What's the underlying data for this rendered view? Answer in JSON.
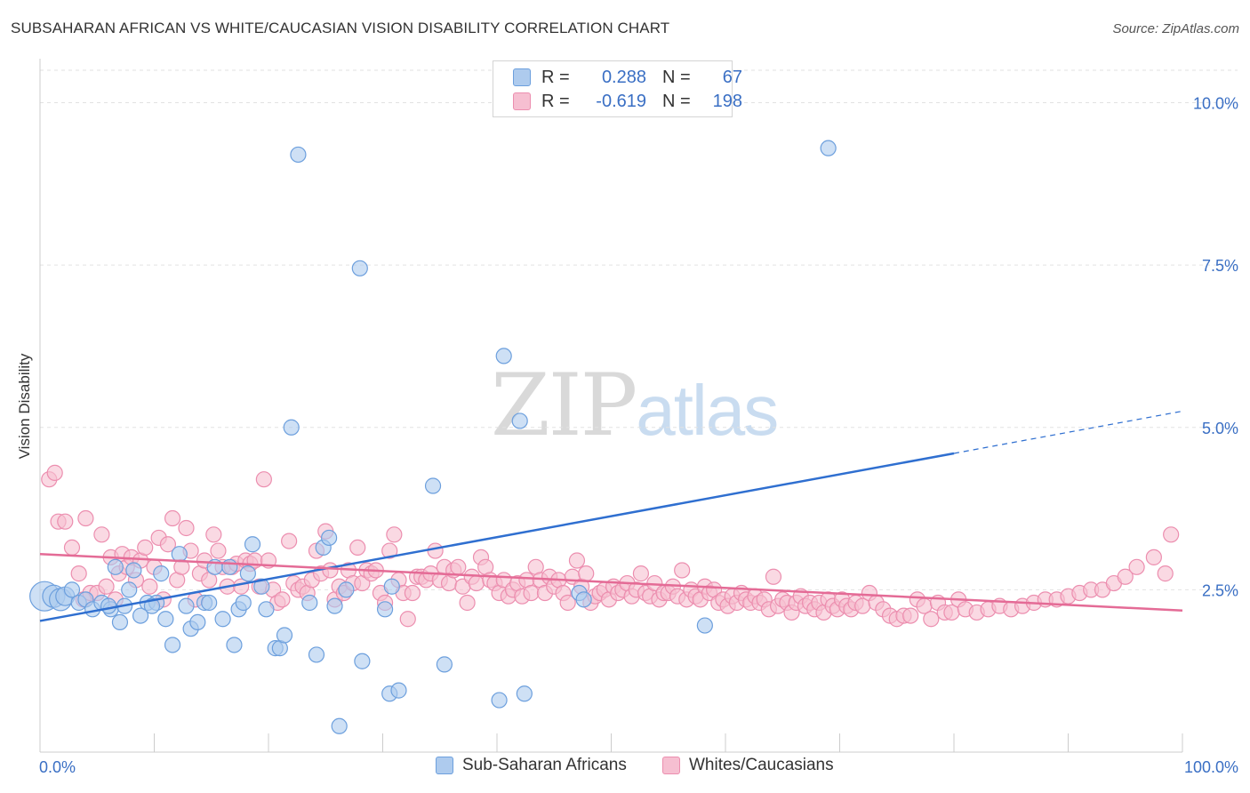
{
  "title": "SUBSAHARAN AFRICAN VS WHITE/CAUCASIAN VISION DISABILITY CORRELATION CHART",
  "source": "Source: ZipAtlas.com",
  "watermark": {
    "zip": "ZIP",
    "atlas": "atlas"
  },
  "colors": {
    "blue_fill": "#aecbee",
    "blue_stroke": "#6c9fdd",
    "blue_line": "#2f6fd0",
    "pink_fill": "#f6bfd1",
    "pink_stroke": "#ec8eaf",
    "pink_line": "#e46b96",
    "axis_text": "#3a6fc4",
    "grid": "#e2e2e2"
  },
  "legend": {
    "rows": [
      {
        "r_label": "R =",
        "r_value": "0.288",
        "n_label": "N =",
        "n_value": "67",
        "series": "blue"
      },
      {
        "r_label": "R =",
        "r_value": "-0.619",
        "n_label": "N =",
        "n_value": "198",
        "series": "pink"
      }
    ]
  },
  "bottom_legend": [
    {
      "label": "Sub-Saharan Africans",
      "series": "blue"
    },
    {
      "label": "Whites/Caucasians",
      "series": "pink"
    }
  ],
  "chart_data": {
    "type": "scatter",
    "title": "SUBSAHARAN AFRICAN VS WHITE/CAUCASIAN VISION DISABILITY CORRELATION CHART",
    "xlabel": "",
    "ylabel": "Vision Disability",
    "xlim": [
      0,
      100
    ],
    "ylim": [
      0,
      10.5
    ],
    "x_tick_labels": [
      "0.0%",
      "100.0%"
    ],
    "y_ticks": [
      2.5,
      5.0,
      7.5,
      10.0
    ],
    "y_tick_labels": [
      "2.5%",
      "5.0%",
      "7.5%",
      "10.0%"
    ],
    "grid": true,
    "legend_position": "top-center",
    "series": [
      {
        "name": "Sub-Saharan Africans",
        "color": "blue",
        "r": 0.288,
        "n": 67,
        "trend": {
          "x": [
            0,
            80
          ],
          "y": [
            2.02,
            4.6
          ],
          "dash_to_x": 100,
          "dash_to_y": 5.25
        },
        "points": [
          [
            0.4,
            2.4,
            3
          ],
          [
            1.2,
            2.4,
            2
          ],
          [
            1.8,
            2.35,
            2
          ],
          [
            2.2,
            2.4,
            1.5
          ],
          [
            2.8,
            2.5,
            1
          ],
          [
            3.4,
            2.3,
            1
          ],
          [
            4.0,
            2.35,
            1
          ],
          [
            4.6,
            2.2,
            1
          ],
          [
            5.4,
            2.3,
            1
          ],
          [
            6.2,
            2.2,
            1
          ],
          [
            6.6,
            2.85,
            1
          ],
          [
            7.0,
            2.0,
            1
          ],
          [
            7.4,
            2.25,
            1
          ],
          [
            7.8,
            2.5,
            1
          ],
          [
            8.2,
            2.8,
            1
          ],
          [
            8.8,
            2.1,
            1
          ],
          [
            9.4,
            2.3,
            1
          ],
          [
            10.2,
            2.3,
            1
          ],
          [
            10.6,
            2.75,
            1
          ],
          [
            11.0,
            2.05,
            1
          ],
          [
            11.6,
            1.65,
            1
          ],
          [
            12.2,
            3.05,
            1
          ],
          [
            12.8,
            2.25,
            1
          ],
          [
            13.2,
            1.9,
            1
          ],
          [
            13.8,
            2.0,
            1
          ],
          [
            14.4,
            2.3,
            1
          ],
          [
            14.8,
            2.3,
            1
          ],
          [
            15.3,
            2.85,
            1
          ],
          [
            16.0,
            2.05,
            1
          ],
          [
            16.6,
            2.85,
            1
          ],
          [
            17.0,
            1.65,
            1
          ],
          [
            17.4,
            2.2,
            1
          ],
          [
            17.8,
            2.3,
            1
          ],
          [
            18.2,
            2.75,
            1
          ],
          [
            18.6,
            3.2,
            1
          ],
          [
            19.4,
            2.55,
            1
          ],
          [
            19.8,
            2.2,
            1
          ],
          [
            20.6,
            1.6,
            1
          ],
          [
            21.0,
            1.6,
            1
          ],
          [
            21.4,
            1.8,
            1
          ],
          [
            22.0,
            5.0,
            1
          ],
          [
            22.6,
            9.2,
            1
          ],
          [
            23.6,
            2.3,
            1
          ],
          [
            24.2,
            1.5,
            1
          ],
          [
            24.8,
            3.15,
            1
          ],
          [
            25.3,
            3.3,
            1
          ],
          [
            25.8,
            2.25,
            1
          ],
          [
            26.2,
            0.4,
            1
          ],
          [
            26.8,
            2.5,
            1
          ],
          [
            28.0,
            7.45,
            1
          ],
          [
            28.2,
            1.4,
            1
          ],
          [
            30.2,
            2.2,
            1
          ],
          [
            30.6,
            0.9,
            1
          ],
          [
            30.8,
            2.55,
            1
          ],
          [
            31.4,
            0.95,
            1
          ],
          [
            34.4,
            4.1,
            1
          ],
          [
            35.4,
            1.35,
            1
          ],
          [
            40.2,
            0.8,
            1
          ],
          [
            40.6,
            6.1,
            1
          ],
          [
            42.0,
            5.1,
            1
          ],
          [
            42.4,
            0.9,
            1
          ],
          [
            47.2,
            2.45,
            1
          ],
          [
            47.6,
            2.35,
            1
          ],
          [
            58.2,
            1.95,
            1
          ],
          [
            69.0,
            9.3,
            1
          ],
          [
            6.0,
            2.25,
            1
          ],
          [
            9.8,
            2.25,
            1
          ]
        ]
      },
      {
        "name": "Whites/Caucasians",
        "color": "pink",
        "r": -0.619,
        "n": 198,
        "trend": {
          "x": [
            0,
            100
          ],
          "y": [
            3.05,
            2.18
          ]
        },
        "points": [
          [
            0.8,
            4.2
          ],
          [
            1.3,
            4.3
          ],
          [
            1.6,
            3.55
          ],
          [
            2.2,
            3.55
          ],
          [
            2.8,
            3.15
          ],
          [
            3.4,
            2.75
          ],
          [
            3.8,
            2.35
          ],
          [
            4.0,
            3.6
          ],
          [
            4.4,
            2.45
          ],
          [
            5.0,
            2.45
          ],
          [
            5.4,
            3.35
          ],
          [
            5.8,
            2.55
          ],
          [
            6.2,
            3.0
          ],
          [
            6.6,
            2.35
          ],
          [
            6.9,
            2.75
          ],
          [
            7.2,
            3.05
          ],
          [
            7.6,
            2.85
          ],
          [
            8.0,
            3.0
          ],
          [
            8.4,
            2.65
          ],
          [
            8.8,
            2.95
          ],
          [
            9.2,
            3.15
          ],
          [
            9.6,
            2.55
          ],
          [
            10.0,
            2.85
          ],
          [
            10.4,
            3.3
          ],
          [
            10.8,
            2.35
          ],
          [
            11.2,
            3.2
          ],
          [
            11.6,
            3.6
          ],
          [
            12.0,
            2.65
          ],
          [
            12.4,
            2.85
          ],
          [
            12.8,
            3.45
          ],
          [
            13.2,
            3.1
          ],
          [
            13.6,
            2.35
          ],
          [
            14.0,
            2.75
          ],
          [
            14.4,
            2.95
          ],
          [
            14.8,
            2.65
          ],
          [
            15.2,
            3.35
          ],
          [
            15.6,
            3.1
          ],
          [
            16.0,
            2.85
          ],
          [
            16.4,
            2.55
          ],
          [
            16.8,
            2.85
          ],
          [
            17.2,
            2.9
          ],
          [
            17.6,
            2.55
          ],
          [
            18.0,
            2.95
          ],
          [
            18.4,
            2.9
          ],
          [
            18.8,
            2.95
          ],
          [
            19.2,
            2.55
          ],
          [
            19.6,
            4.2
          ],
          [
            20.0,
            2.95
          ],
          [
            20.4,
            2.5
          ],
          [
            20.8,
            2.3
          ],
          [
            21.2,
            2.35
          ],
          [
            21.8,
            3.25
          ],
          [
            22.2,
            2.6
          ],
          [
            22.6,
            2.5
          ],
          [
            23.0,
            2.55
          ],
          [
            23.4,
            2.45
          ],
          [
            23.8,
            2.65
          ],
          [
            24.2,
            3.1
          ],
          [
            24.6,
            2.75
          ],
          [
            25.0,
            3.4
          ],
          [
            25.4,
            2.8
          ],
          [
            25.8,
            2.35
          ],
          [
            26.2,
            2.55
          ],
          [
            26.6,
            2.45
          ],
          [
            27.0,
            2.8
          ],
          [
            27.4,
            2.6
          ],
          [
            27.8,
            3.15
          ],
          [
            28.2,
            2.6
          ],
          [
            28.6,
            2.8
          ],
          [
            29.0,
            2.75
          ],
          [
            29.4,
            2.8
          ],
          [
            29.8,
            2.45
          ],
          [
            30.2,
            2.3
          ],
          [
            30.6,
            3.1
          ],
          [
            31.0,
            3.35
          ],
          [
            31.4,
            2.65
          ],
          [
            31.8,
            2.45
          ],
          [
            32.2,
            2.05
          ],
          [
            32.6,
            2.45
          ],
          [
            33.0,
            2.7
          ],
          [
            33.4,
            2.7
          ],
          [
            33.8,
            2.65
          ],
          [
            34.2,
            2.75
          ],
          [
            34.6,
            3.1
          ],
          [
            35.0,
            2.65
          ],
          [
            35.4,
            2.85
          ],
          [
            35.8,
            2.6
          ],
          [
            36.2,
            2.8
          ],
          [
            36.6,
            2.85
          ],
          [
            37.0,
            2.55
          ],
          [
            37.4,
            2.3
          ],
          [
            37.8,
            2.7
          ],
          [
            38.2,
            2.6
          ],
          [
            38.6,
            3.0
          ],
          [
            39.0,
            2.85
          ],
          [
            39.4,
            2.65
          ],
          [
            39.8,
            2.6
          ],
          [
            40.2,
            2.45
          ],
          [
            40.6,
            2.65
          ],
          [
            41.0,
            2.4
          ],
          [
            41.4,
            2.5
          ],
          [
            41.8,
            2.6
          ],
          [
            42.2,
            2.4
          ],
          [
            42.6,
            2.65
          ],
          [
            43.0,
            2.45
          ],
          [
            43.4,
            2.85
          ],
          [
            43.8,
            2.65
          ],
          [
            44.2,
            2.45
          ],
          [
            44.6,
            2.7
          ],
          [
            45.0,
            2.55
          ],
          [
            45.4,
            2.65
          ],
          [
            45.8,
            2.45
          ],
          [
            46.2,
            2.3
          ],
          [
            46.6,
            2.7
          ],
          [
            47.0,
            2.95
          ],
          [
            47.4,
            2.55
          ],
          [
            47.8,
            2.75
          ],
          [
            48.2,
            2.3
          ],
          [
            48.6,
            2.4
          ],
          [
            49.0,
            2.45
          ],
          [
            49.4,
            2.5
          ],
          [
            49.8,
            2.35
          ],
          [
            50.2,
            2.55
          ],
          [
            50.6,
            2.45
          ],
          [
            51.0,
            2.5
          ],
          [
            51.4,
            2.6
          ],
          [
            51.8,
            2.4
          ],
          [
            52.2,
            2.5
          ],
          [
            52.6,
            2.75
          ],
          [
            53.0,
            2.45
          ],
          [
            53.4,
            2.4
          ],
          [
            53.8,
            2.6
          ],
          [
            54.2,
            2.35
          ],
          [
            54.6,
            2.45
          ],
          [
            55.0,
            2.45
          ],
          [
            55.4,
            2.55
          ],
          [
            55.8,
            2.4
          ],
          [
            56.2,
            2.8
          ],
          [
            56.6,
            2.35
          ],
          [
            57.0,
            2.5
          ],
          [
            57.4,
            2.4
          ],
          [
            57.8,
            2.35
          ],
          [
            58.2,
            2.55
          ],
          [
            58.6,
            2.45
          ],
          [
            59.0,
            2.5
          ],
          [
            59.4,
            2.3
          ],
          [
            59.8,
            2.35
          ],
          [
            60.2,
            2.25
          ],
          [
            60.6,
            2.4
          ],
          [
            61.0,
            2.3
          ],
          [
            61.4,
            2.45
          ],
          [
            61.8,
            2.35
          ],
          [
            62.2,
            2.3
          ],
          [
            62.6,
            2.4
          ],
          [
            63.0,
            2.3
          ],
          [
            63.4,
            2.35
          ],
          [
            63.8,
            2.2
          ],
          [
            64.2,
            2.7
          ],
          [
            64.6,
            2.25
          ],
          [
            65.0,
            2.35
          ],
          [
            65.4,
            2.3
          ],
          [
            65.8,
            2.15
          ],
          [
            66.2,
            2.3
          ],
          [
            66.6,
            2.4
          ],
          [
            67.0,
            2.25
          ],
          [
            67.4,
            2.3
          ],
          [
            67.8,
            2.2
          ],
          [
            68.2,
            2.3
          ],
          [
            68.6,
            2.15
          ],
          [
            69.0,
            2.35
          ],
          [
            69.4,
            2.25
          ],
          [
            69.8,
            2.2
          ],
          [
            70.2,
            2.35
          ],
          [
            70.6,
            2.25
          ],
          [
            71.0,
            2.2
          ],
          [
            71.4,
            2.3
          ],
          [
            72.0,
            2.25
          ],
          [
            72.6,
            2.45
          ],
          [
            73.2,
            2.3
          ],
          [
            73.8,
            2.2
          ],
          [
            74.4,
            2.1
          ],
          [
            75.0,
            2.05
          ],
          [
            75.6,
            2.1
          ],
          [
            76.2,
            2.1
          ],
          [
            76.8,
            2.35
          ],
          [
            77.4,
            2.25
          ],
          [
            78.0,
            2.05
          ],
          [
            78.6,
            2.3
          ],
          [
            79.2,
            2.15
          ],
          [
            79.8,
            2.15
          ],
          [
            80.4,
            2.35
          ],
          [
            81.0,
            2.2
          ],
          [
            82.0,
            2.15
          ],
          [
            83.0,
            2.2
          ],
          [
            84.0,
            2.25
          ],
          [
            85.0,
            2.2
          ],
          [
            86.0,
            2.25
          ],
          [
            87.0,
            2.3
          ],
          [
            88.0,
            2.35
          ],
          [
            89.0,
            2.35
          ],
          [
            90.0,
            2.4
          ],
          [
            91.0,
            2.45
          ],
          [
            92.0,
            2.5
          ],
          [
            93.0,
            2.5
          ],
          [
            94.0,
            2.6
          ],
          [
            95.0,
            2.7
          ],
          [
            96.0,
            2.85
          ],
          [
            97.5,
            3.0
          ],
          [
            98.5,
            2.75
          ],
          [
            99.0,
            3.35
          ]
        ]
      }
    ]
  }
}
